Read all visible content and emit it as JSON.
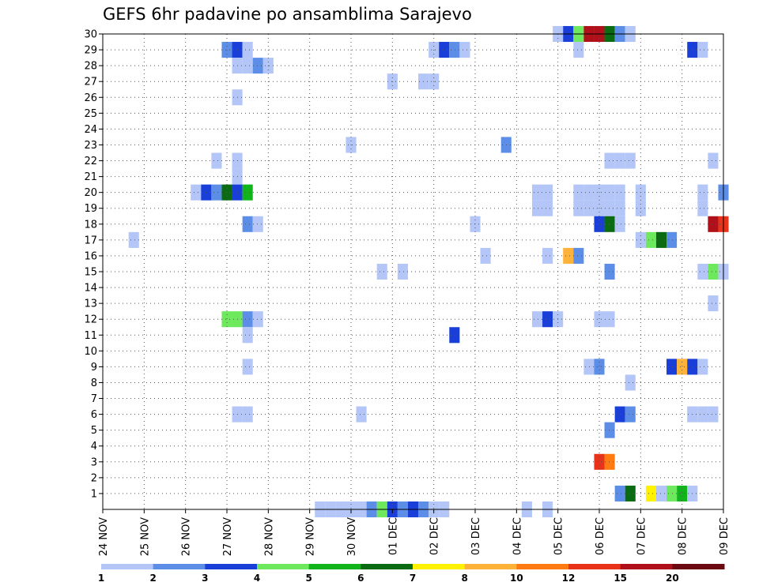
{
  "chart_data": {
    "type": "heatmap",
    "title": "GEFS 6hr padavine po ansamblima Sarajevo",
    "x_tick_labels": [
      "24 NOV",
      "25 NOV",
      "26 NOV",
      "27 NOV",
      "28 NOV",
      "29 NOV",
      "30 NOV",
      "01 DEC",
      "02 DEC",
      "03 DEC",
      "04 DEC",
      "05 DEC",
      "06 DEC",
      "07 DEC",
      "08 DEC",
      "09 DEC"
    ],
    "y_tick_labels": [
      "1",
      "2",
      "3",
      "4",
      "5",
      "6",
      "7",
      "8",
      "9",
      "10",
      "11",
      "12",
      "13",
      "14",
      "15",
      "16",
      "17",
      "18",
      "19",
      "20",
      "21",
      "22",
      "23",
      "24",
      "25",
      "26",
      "27",
      "28",
      "29",
      "30"
    ],
    "xlim_steps": [
      0,
      60
    ],
    "ylim": [
      0,
      30
    ],
    "grid": true,
    "legend": {
      "position": "bottom",
      "levels": [
        "1",
        "2",
        "3",
        "4",
        "5",
        "6",
        "7",
        "8",
        "10",
        "12",
        "15",
        "20"
      ],
      "colors": [
        "#b3c6f7",
        "#5c8ee8",
        "#1a3fd9",
        "#6ee85c",
        "#12b41c",
        "#0b6b12",
        "#fff200",
        "#ffb23a",
        "#ff7a10",
        "#e8321a",
        "#b0101a",
        "#6b0a10"
      ]
    },
    "cells": [
      {
        "m": 30,
        "t": 44,
        "v": 1
      },
      {
        "m": 30,
        "t": 45,
        "v": 3
      },
      {
        "m": 30,
        "t": 46,
        "v": 4
      },
      {
        "m": 30,
        "t": 47,
        "v": 15
      },
      {
        "m": 30,
        "t": 48,
        "v": 15
      },
      {
        "m": 30,
        "t": 49,
        "v": 6
      },
      {
        "m": 30,
        "t": 50,
        "v": 2
      },
      {
        "m": 30,
        "t": 51,
        "v": 1
      },
      {
        "m": 29,
        "t": 12,
        "v": 2
      },
      {
        "m": 29,
        "t": 13,
        "v": 3
      },
      {
        "m": 29,
        "t": 14,
        "v": 1
      },
      {
        "m": 29,
        "t": 32,
        "v": 1
      },
      {
        "m": 29,
        "t": 33,
        "v": 3
      },
      {
        "m": 29,
        "t": 34,
        "v": 2
      },
      {
        "m": 29,
        "t": 35,
        "v": 1
      },
      {
        "m": 29,
        "t": 46,
        "v": 1
      },
      {
        "m": 29,
        "t": 57,
        "v": 3
      },
      {
        "m": 29,
        "t": 58,
        "v": 1
      },
      {
        "m": 28,
        "t": 13,
        "v": 1
      },
      {
        "m": 28,
        "t": 14,
        "v": 1
      },
      {
        "m": 28,
        "t": 15,
        "v": 2
      },
      {
        "m": 28,
        "t": 16,
        "v": 1
      },
      {
        "m": 27,
        "t": 28,
        "v": 1
      },
      {
        "m": 27,
        "t": 31,
        "v": 1
      },
      {
        "m": 27,
        "t": 32,
        "v": 1
      },
      {
        "m": 26,
        "t": 13,
        "v": 1
      },
      {
        "m": 23,
        "t": 24,
        "v": 1
      },
      {
        "m": 23,
        "t": 39,
        "v": 2
      },
      {
        "m": 22,
        "t": 11,
        "v": 1
      },
      {
        "m": 22,
        "t": 13,
        "v": 1
      },
      {
        "m": 22,
        "t": 49,
        "v": 1
      },
      {
        "m": 22,
        "t": 50,
        "v": 1
      },
      {
        "m": 22,
        "t": 51,
        "v": 1
      },
      {
        "m": 22,
        "t": 59,
        "v": 1
      },
      {
        "m": 21,
        "t": 13,
        "v": 1
      },
      {
        "m": 20,
        "t": 9,
        "v": 1
      },
      {
        "m": 20,
        "t": 10,
        "v": 3
      },
      {
        "m": 20,
        "t": 11,
        "v": 2
      },
      {
        "m": 20,
        "t": 12,
        "v": 6
      },
      {
        "m": 20,
        "t": 13,
        "v": 3
      },
      {
        "m": 20,
        "t": 14,
        "v": 5
      },
      {
        "m": 20,
        "t": 42,
        "v": 1
      },
      {
        "m": 20,
        "t": 43,
        "v": 1
      },
      {
        "m": 20,
        "t": 46,
        "v": 1
      },
      {
        "m": 20,
        "t": 47,
        "v": 1
      },
      {
        "m": 20,
        "t": 48,
        "v": 1
      },
      {
        "m": 20,
        "t": 49,
        "v": 1
      },
      {
        "m": 20,
        "t": 50,
        "v": 1
      },
      {
        "m": 20,
        "t": 52,
        "v": 1
      },
      {
        "m": 20,
        "t": 58,
        "v": 1
      },
      {
        "m": 20,
        "t": 60,
        "v": 2
      },
      {
        "m": 19,
        "t": 42,
        "v": 1
      },
      {
        "m": 19,
        "t": 43,
        "v": 1
      },
      {
        "m": 19,
        "t": 46,
        "v": 1
      },
      {
        "m": 19,
        "t": 47,
        "v": 1
      },
      {
        "m": 19,
        "t": 48,
        "v": 1
      },
      {
        "m": 19,
        "t": 49,
        "v": 1
      },
      {
        "m": 19,
        "t": 50,
        "v": 1
      },
      {
        "m": 19,
        "t": 52,
        "v": 1
      },
      {
        "m": 19,
        "t": 58,
        "v": 1
      },
      {
        "m": 18,
        "t": 14,
        "v": 2
      },
      {
        "m": 18,
        "t": 15,
        "v": 1
      },
      {
        "m": 18,
        "t": 36,
        "v": 1
      },
      {
        "m": 18,
        "t": 48,
        "v": 3
      },
      {
        "m": 18,
        "t": 49,
        "v": 6
      },
      {
        "m": 18,
        "t": 50,
        "v": 1
      },
      {
        "m": 18,
        "t": 59,
        "v": 15
      },
      {
        "m": 18,
        "t": 60,
        "v": 12
      },
      {
        "m": 17,
        "t": 3,
        "v": 1
      },
      {
        "m": 17,
        "t": 52,
        "v": 1
      },
      {
        "m": 17,
        "t": 53,
        "v": 4
      },
      {
        "m": 17,
        "t": 54,
        "v": 6
      },
      {
        "m": 17,
        "t": 55,
        "v": 2
      },
      {
        "m": 16,
        "t": 37,
        "v": 1
      },
      {
        "m": 16,
        "t": 43,
        "v": 1
      },
      {
        "m": 16,
        "t": 45,
        "v": 8
      },
      {
        "m": 16,
        "t": 46,
        "v": 2
      },
      {
        "m": 15,
        "t": 27,
        "v": 1
      },
      {
        "m": 15,
        "t": 29,
        "v": 1
      },
      {
        "m": 15,
        "t": 49,
        "v": 2
      },
      {
        "m": 15,
        "t": 58,
        "v": 1
      },
      {
        "m": 15,
        "t": 59,
        "v": 4
      },
      {
        "m": 15,
        "t": 60,
        "v": 1
      },
      {
        "m": 13,
        "t": 59,
        "v": 1
      },
      {
        "m": 12,
        "t": 12,
        "v": 4
      },
      {
        "m": 12,
        "t": 13,
        "v": 4
      },
      {
        "m": 12,
        "t": 14,
        "v": 2
      },
      {
        "m": 12,
        "t": 15,
        "v": 1
      },
      {
        "m": 12,
        "t": 42,
        "v": 1
      },
      {
        "m": 12,
        "t": 43,
        "v": 3
      },
      {
        "m": 12,
        "t": 44,
        "v": 1
      },
      {
        "m": 12,
        "t": 48,
        "v": 1
      },
      {
        "m": 12,
        "t": 49,
        "v": 1
      },
      {
        "m": 11,
        "t": 14,
        "v": 1
      },
      {
        "m": 11,
        "t": 34,
        "v": 3
      },
      {
        "m": 9,
        "t": 14,
        "v": 1
      },
      {
        "m": 9,
        "t": 47,
        "v": 1
      },
      {
        "m": 9,
        "t": 48,
        "v": 2
      },
      {
        "m": 9,
        "t": 55,
        "v": 3
      },
      {
        "m": 9,
        "t": 56,
        "v": 8
      },
      {
        "m": 9,
        "t": 57,
        "v": 3
      },
      {
        "m": 9,
        "t": 58,
        "v": 1
      },
      {
        "m": 8,
        "t": 51,
        "v": 1
      },
      {
        "m": 6,
        "t": 13,
        "v": 1
      },
      {
        "m": 6,
        "t": 14,
        "v": 1
      },
      {
        "m": 6,
        "t": 25,
        "v": 1
      },
      {
        "m": 6,
        "t": 50,
        "v": 3
      },
      {
        "m": 6,
        "t": 51,
        "v": 2
      },
      {
        "m": 6,
        "t": 57,
        "v": 1
      },
      {
        "m": 6,
        "t": 58,
        "v": 1
      },
      {
        "m": 6,
        "t": 59,
        "v": 1
      },
      {
        "m": 5,
        "t": 49,
        "v": 2
      },
      {
        "m": 3,
        "t": 48,
        "v": 12
      },
      {
        "m": 3,
        "t": 49,
        "v": 10
      },
      {
        "m": 1,
        "t": 50,
        "v": 2
      },
      {
        "m": 1,
        "t": 51,
        "v": 6
      },
      {
        "m": 1,
        "t": 53,
        "v": 7
      },
      {
        "m": 1,
        "t": 54,
        "v": 1
      },
      {
        "m": 1,
        "t": 55,
        "v": 4
      },
      {
        "m": 1,
        "t": 56,
        "v": 5
      },
      {
        "m": 1,
        "t": 57,
        "v": 1
      },
      {
        "m": 0,
        "t": 21,
        "v": 1
      },
      {
        "m": 0,
        "t": 22,
        "v": 1
      },
      {
        "m": 0,
        "t": 23,
        "v": 1
      },
      {
        "m": 0,
        "t": 24,
        "v": 1
      },
      {
        "m": 0,
        "t": 25,
        "v": 1
      },
      {
        "m": 0,
        "t": 26,
        "v": 2
      },
      {
        "m": 0,
        "t": 27,
        "v": 4
      },
      {
        "m": 0,
        "t": 28,
        "v": 3
      },
      {
        "m": 0,
        "t": 29,
        "v": 2
      },
      {
        "m": 0,
        "t": 30,
        "v": 3
      },
      {
        "m": 0,
        "t": 31,
        "v": 2
      },
      {
        "m": 0,
        "t": 32,
        "v": 1
      },
      {
        "m": 0,
        "t": 33,
        "v": 1
      },
      {
        "m": 0,
        "t": 41,
        "v": 1
      },
      {
        "m": 0,
        "t": 43,
        "v": 1
      }
    ]
  }
}
